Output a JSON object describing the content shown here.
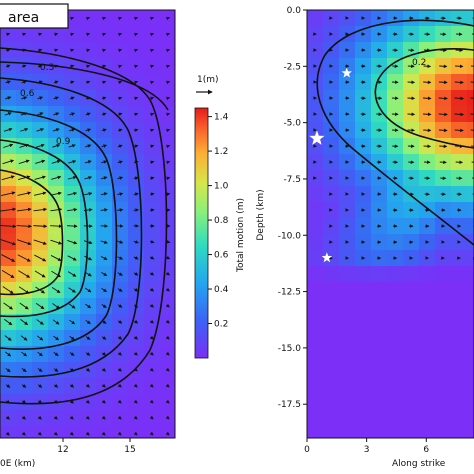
{
  "chart_data": [
    {
      "type": "heatmap",
      "title": "area",
      "xlabel": "0E (km)",
      "x_ticks": [
        "12",
        "15"
      ],
      "ylabel": "",
      "description_of_field": "total slip with slip vectors; peak near x≈-3 km, y≈0.5",
      "x_range_km": [
        -3,
        16.5
      ],
      "y_range": [
        0,
        1
      ],
      "peak": {
        "x": -3,
        "y": 0.45,
        "value": 1.4
      },
      "contours": [
        {
          "label": "0.3",
          "level": 0.3
        },
        {
          "label": "0.6",
          "level": 0.6
        },
        {
          "label": "0.9",
          "level": 0.9
        }
      ]
    },
    {
      "type": "colorbar",
      "label": "Total motion (m)",
      "range": [
        0,
        1.45
      ],
      "ticks": [
        "1.4",
        "1.2",
        "1.0",
        "0.8",
        "0.6",
        "0.4",
        "0.2"
      ],
      "tick_values": [
        1.4,
        1.2,
        1.0,
        0.8,
        0.6,
        0.4,
        0.2
      ]
    },
    {
      "type": "heatmap",
      "title": "",
      "xlabel": "Along strike",
      "ylabel": "Depth (km)",
      "x_ticks": [
        "0",
        "3",
        "6"
      ],
      "x_tick_values": [
        0,
        3,
        6
      ],
      "x_range_km": [
        0,
        8.4
      ],
      "y_ticks": [
        "0.0",
        "-2.5",
        "-5.0",
        "-7.5",
        "-10.0",
        "-12.5",
        "-15.0",
        "-17.5"
      ],
      "y_tick_values": [
        0,
        -2.5,
        -5,
        -7.5,
        -10,
        -12.5,
        -15,
        -17.5
      ],
      "ylim": [
        -19,
        0
      ],
      "peak": {
        "x": 7,
        "depth": -4.5,
        "value": 1.45
      },
      "contours": [
        {
          "label": "0.2",
          "level": 0.2
        }
      ],
      "stars": [
        {
          "x": 0.5,
          "depth": -5.7,
          "size": "large"
        },
        {
          "x": 2.0,
          "depth": -2.8,
          "size": "small"
        },
        {
          "x": 1.0,
          "depth": -11.0,
          "size": "small"
        }
      ]
    }
  ],
  "vector_scale": {
    "label": "1(m)"
  },
  "colors": {
    "background_min": "#7a2ef5",
    "peak": "#e8201c"
  }
}
